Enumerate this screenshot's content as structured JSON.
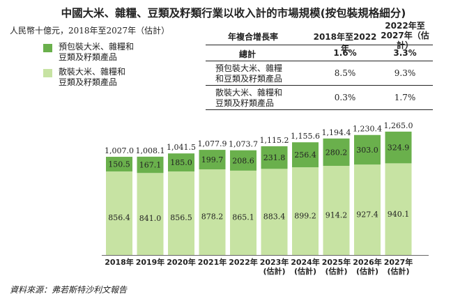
{
  "title": "中國大米、雜糧、豆類及籽類行業以收入計的市場規模(按包裝規格細分)",
  "unit_note": "人民幣十億元，2018年至2027年（估計）",
  "colors": {
    "packaged": "#6ab04c",
    "bulk": "#c7e3a3"
  },
  "legend": [
    {
      "lines": [
        "預包裝大米、雜糧和",
        "豆類及籽類產品"
      ],
      "color": "#6ab04c"
    },
    {
      "lines": [
        "散裝大米、雜糧和",
        "豆類及籽類產品"
      ],
      "color": "#c7e3a3"
    }
  ],
  "cagr_table": {
    "header_label": "年複合增長率",
    "col1_header": "2018年至2022年",
    "col2_header_lines": [
      "2022年至",
      "2027年（估計）"
    ],
    "rows": [
      {
        "label_lines": [
          "總計"
        ],
        "v1": "1.6%",
        "v2": "3.3%"
      },
      {
        "label_lines": [
          "預包裝大米、雜糧",
          "和豆類及籽類產品"
        ],
        "v1": "8.5%",
        "v2": "9.3%"
      },
      {
        "label_lines": [
          "散裝大米、雜糧和",
          "豆類及籽類產品"
        ],
        "v1": "0.3%",
        "v2": "1.7%"
      }
    ]
  },
  "chart_data": {
    "type": "bar",
    "stacked": true,
    "categories": [
      [
        "2018年"
      ],
      [
        "2019年"
      ],
      [
        "2020年"
      ],
      [
        "2021年"
      ],
      [
        "2022年"
      ],
      [
        "2023年",
        "(估計)"
      ],
      [
        "2024年",
        "(估計)"
      ],
      [
        "2025年",
        "(估計)"
      ],
      [
        "2026年",
        "(估計)"
      ],
      [
        "2027年",
        "(估計)"
      ]
    ],
    "series": [
      {
        "name": "散裝大米、雜糧和豆類及籽類產品",
        "values": [
          856.4,
          841.0,
          856.5,
          878.2,
          865.1,
          883.4,
          899.2,
          914.2,
          927.4,
          940.1
        ],
        "labels": [
          "856.4",
          "841.0",
          "856.5",
          "878.2",
          "865.1",
          "883.4",
          "899.2",
          "914.2",
          "927.4",
          "940.1"
        ]
      },
      {
        "name": "預包裝大米、雜糧和豆類及籽類產品",
        "values": [
          150.5,
          167.1,
          185.0,
          199.7,
          208.6,
          231.8,
          256.4,
          280.2,
          303.0,
          324.9
        ],
        "labels": [
          "150.5",
          "167.1",
          "185.0",
          "199.7",
          "208.6",
          "231.8",
          "256.4",
          "280.2",
          "303.0",
          "324.9"
        ]
      }
    ],
    "totals": [
      1007.0,
      1008.1,
      1041.5,
      1077.9,
      1073.7,
      1115.2,
      1155.6,
      1194.4,
      1230.4,
      1265.0
    ],
    "total_labels": [
      "1,007.0",
      "1,008.1",
      "1,041.5",
      "1,077.9",
      "1,073.7",
      "1,115.2",
      "1,155.6",
      "1,194.4",
      "1,230.4",
      "1,265.0"
    ],
    "ylim": [
      0,
      1300
    ],
    "grid": false
  },
  "source": "資料來源：弗若斯特沙利文報告"
}
